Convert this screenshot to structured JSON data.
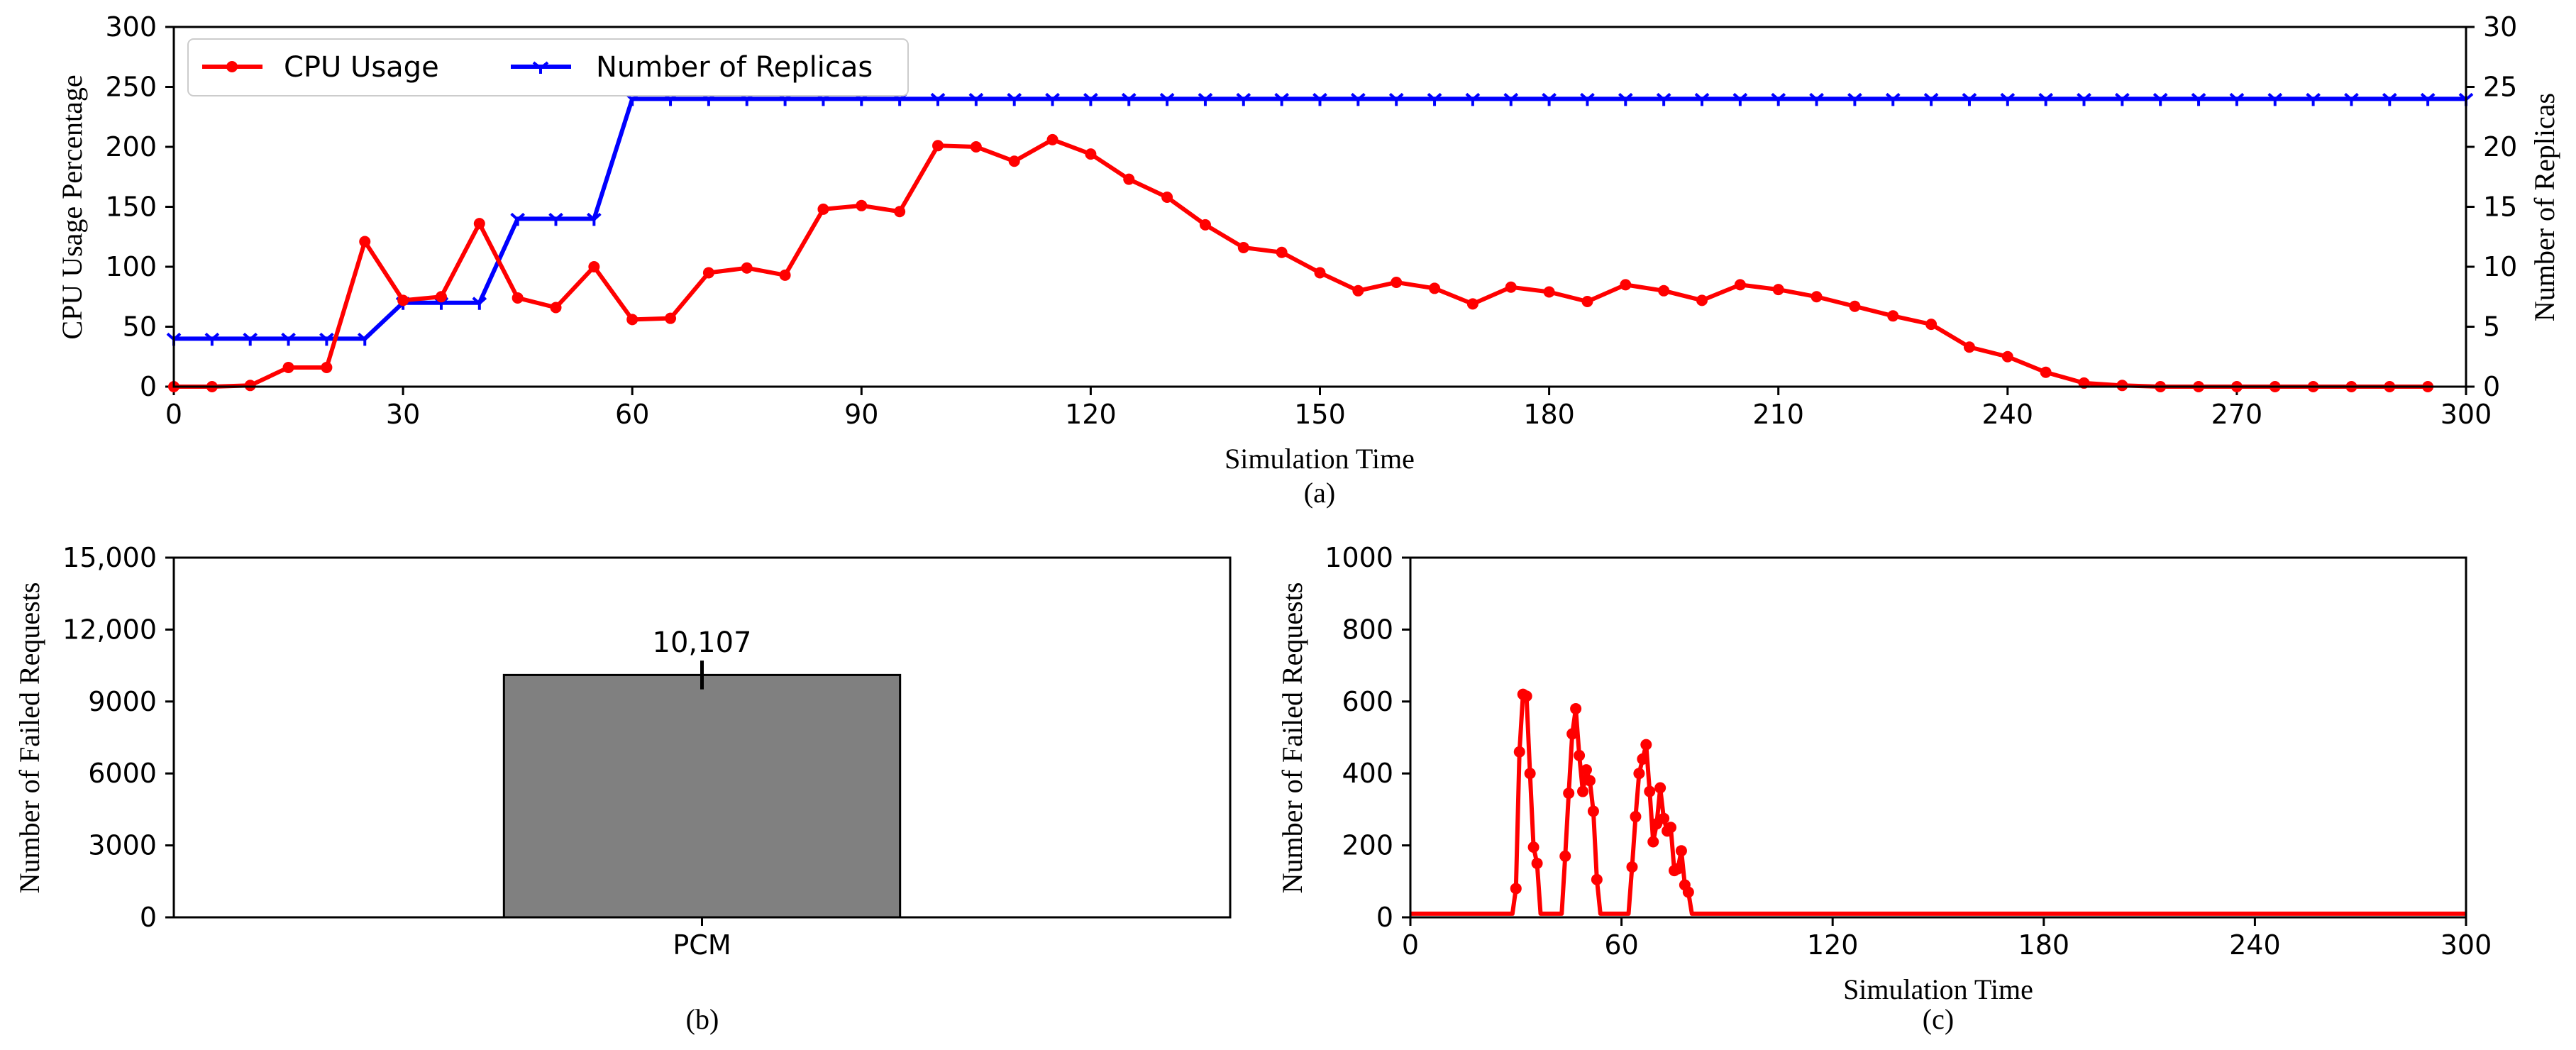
{
  "colors": {
    "cpu": "#ff0000",
    "replicas": "#0000ff",
    "bar_fill": "#808080",
    "failed": "#ff0000",
    "axis": "#000000"
  },
  "chart_data": [
    {
      "panel": "(a)",
      "caption": "(a)",
      "type": "line",
      "xlabel": "Simulation Time",
      "ylabel": "CPU Usage Percentage",
      "ylabel_right": "Number of Replicas",
      "xlim": [
        0,
        300
      ],
      "ylim": [
        0,
        300
      ],
      "ylim_right": [
        0,
        30
      ],
      "xticks": [
        "0",
        "30",
        "60",
        "90",
        "120",
        "150",
        "180",
        "210",
        "240",
        "270",
        "300"
      ],
      "yticks": [
        "0",
        "50",
        "100",
        "150",
        "200",
        "250",
        "300"
      ],
      "yticks_right": [
        "0",
        "5",
        "10",
        "15",
        "20",
        "25",
        "30"
      ],
      "legend_position": "top-left",
      "series": [
        {
          "name": "CPU Usage",
          "axis": "left",
          "marker": "circle",
          "x": [
            0,
            5,
            10,
            15,
            20,
            25,
            30,
            35,
            40,
            45,
            50,
            55,
            60,
            65,
            70,
            75,
            80,
            85,
            90,
            95,
            100,
            105,
            110,
            115,
            120,
            125,
            130,
            135,
            140,
            145,
            150,
            155,
            160,
            165,
            170,
            175,
            180,
            185,
            190,
            195,
            200,
            205,
            210,
            215,
            220,
            225,
            230,
            235,
            240,
            245,
            250,
            255,
            260,
            265,
            270,
            275,
            280,
            285,
            290,
            295
          ],
          "values": [
            0,
            0,
            1,
            16,
            16,
            121,
            72,
            75,
            136,
            74,
            66,
            100,
            56,
            57,
            95,
            99,
            93,
            148,
            151,
            146,
            201,
            200,
            188,
            206,
            194,
            173,
            158,
            135,
            116,
            112,
            95,
            80,
            87,
            82,
            69,
            83,
            79,
            71,
            85,
            80,
            72,
            85,
            81,
            75,
            67,
            59,
            52,
            33,
            25,
            12,
            3,
            1,
            0,
            0,
            0,
            0,
            0,
            0,
            0,
            0
          ]
        },
        {
          "name": "Number of Replicas",
          "axis": "right",
          "marker": "tri_down",
          "x": [
            0,
            5,
            10,
            15,
            20,
            25,
            30,
            35,
            40,
            45,
            50,
            55,
            60,
            65,
            70,
            75,
            80,
            85,
            90,
            95,
            100,
            105,
            110,
            115,
            120,
            125,
            130,
            135,
            140,
            145,
            150,
            155,
            160,
            165,
            170,
            175,
            180,
            185,
            190,
            195,
            200,
            205,
            210,
            215,
            220,
            225,
            230,
            235,
            240,
            245,
            250,
            255,
            260,
            265,
            270,
            275,
            280,
            285,
            290,
            295,
            300
          ],
          "values": [
            4,
            4,
            4,
            4,
            4,
            4,
            7,
            7,
            7,
            14,
            14,
            14,
            24,
            24,
            24,
            24,
            24,
            24,
            24,
            24,
            24,
            24,
            24,
            24,
            24,
            24,
            24,
            24,
            24,
            24,
            24,
            24,
            24,
            24,
            24,
            24,
            24,
            24,
            24,
            24,
            24,
            24,
            24,
            24,
            24,
            24,
            24,
            24,
            24,
            24,
            24,
            24,
            24,
            24,
            24,
            24,
            24,
            24,
            24,
            24,
            24
          ]
        }
      ]
    },
    {
      "panel": "(b)",
      "caption": "(b)",
      "type": "bar",
      "xlabel": "",
      "ylabel": "Number of Failed Requests",
      "ylim": [
        0,
        15000
      ],
      "yticks": [
        "0",
        "3000",
        "6000",
        "9000",
        "12,000",
        "15,000"
      ],
      "categories": [
        "PCM"
      ],
      "values": [
        10107
      ],
      "error": [
        600
      ],
      "data_label": "10,107"
    },
    {
      "panel": "(c)",
      "caption": "(c)",
      "type": "line",
      "xlabel": "Simulation Time",
      "ylabel": "Number of Failed Requests",
      "xlim": [
        0,
        300
      ],
      "ylim": [
        0,
        1000
      ],
      "xticks": [
        "0",
        "60",
        "120",
        "180",
        "240",
        "300"
      ],
      "yticks": [
        "0",
        "200",
        "400",
        "600",
        "800",
        "1000"
      ],
      "series": [
        {
          "name": "Failed Requests",
          "marker": "circle",
          "x": [
            0,
            29,
            30,
            31,
            32,
            33,
            34,
            35,
            36,
            37,
            43,
            44,
            45,
            46,
            47,
            48,
            49,
            50,
            51,
            52,
            53,
            54,
            55,
            56,
            62,
            63,
            64,
            65,
            66,
            67,
            68,
            69,
            70,
            71,
            72,
            73,
            74,
            75,
            76,
            77,
            78,
            79,
            80,
            300
          ],
          "values": [
            10,
            10,
            80,
            460,
            620,
            615,
            400,
            195,
            150,
            10,
            10,
            170,
            345,
            510,
            580,
            450,
            350,
            410,
            380,
            295,
            105,
            10,
            10,
            10,
            10,
            140,
            280,
            400,
            440,
            480,
            350,
            210,
            260,
            360,
            275,
            240,
            250,
            130,
            135,
            185,
            90,
            70,
            10,
            10
          ]
        }
      ]
    }
  ]
}
